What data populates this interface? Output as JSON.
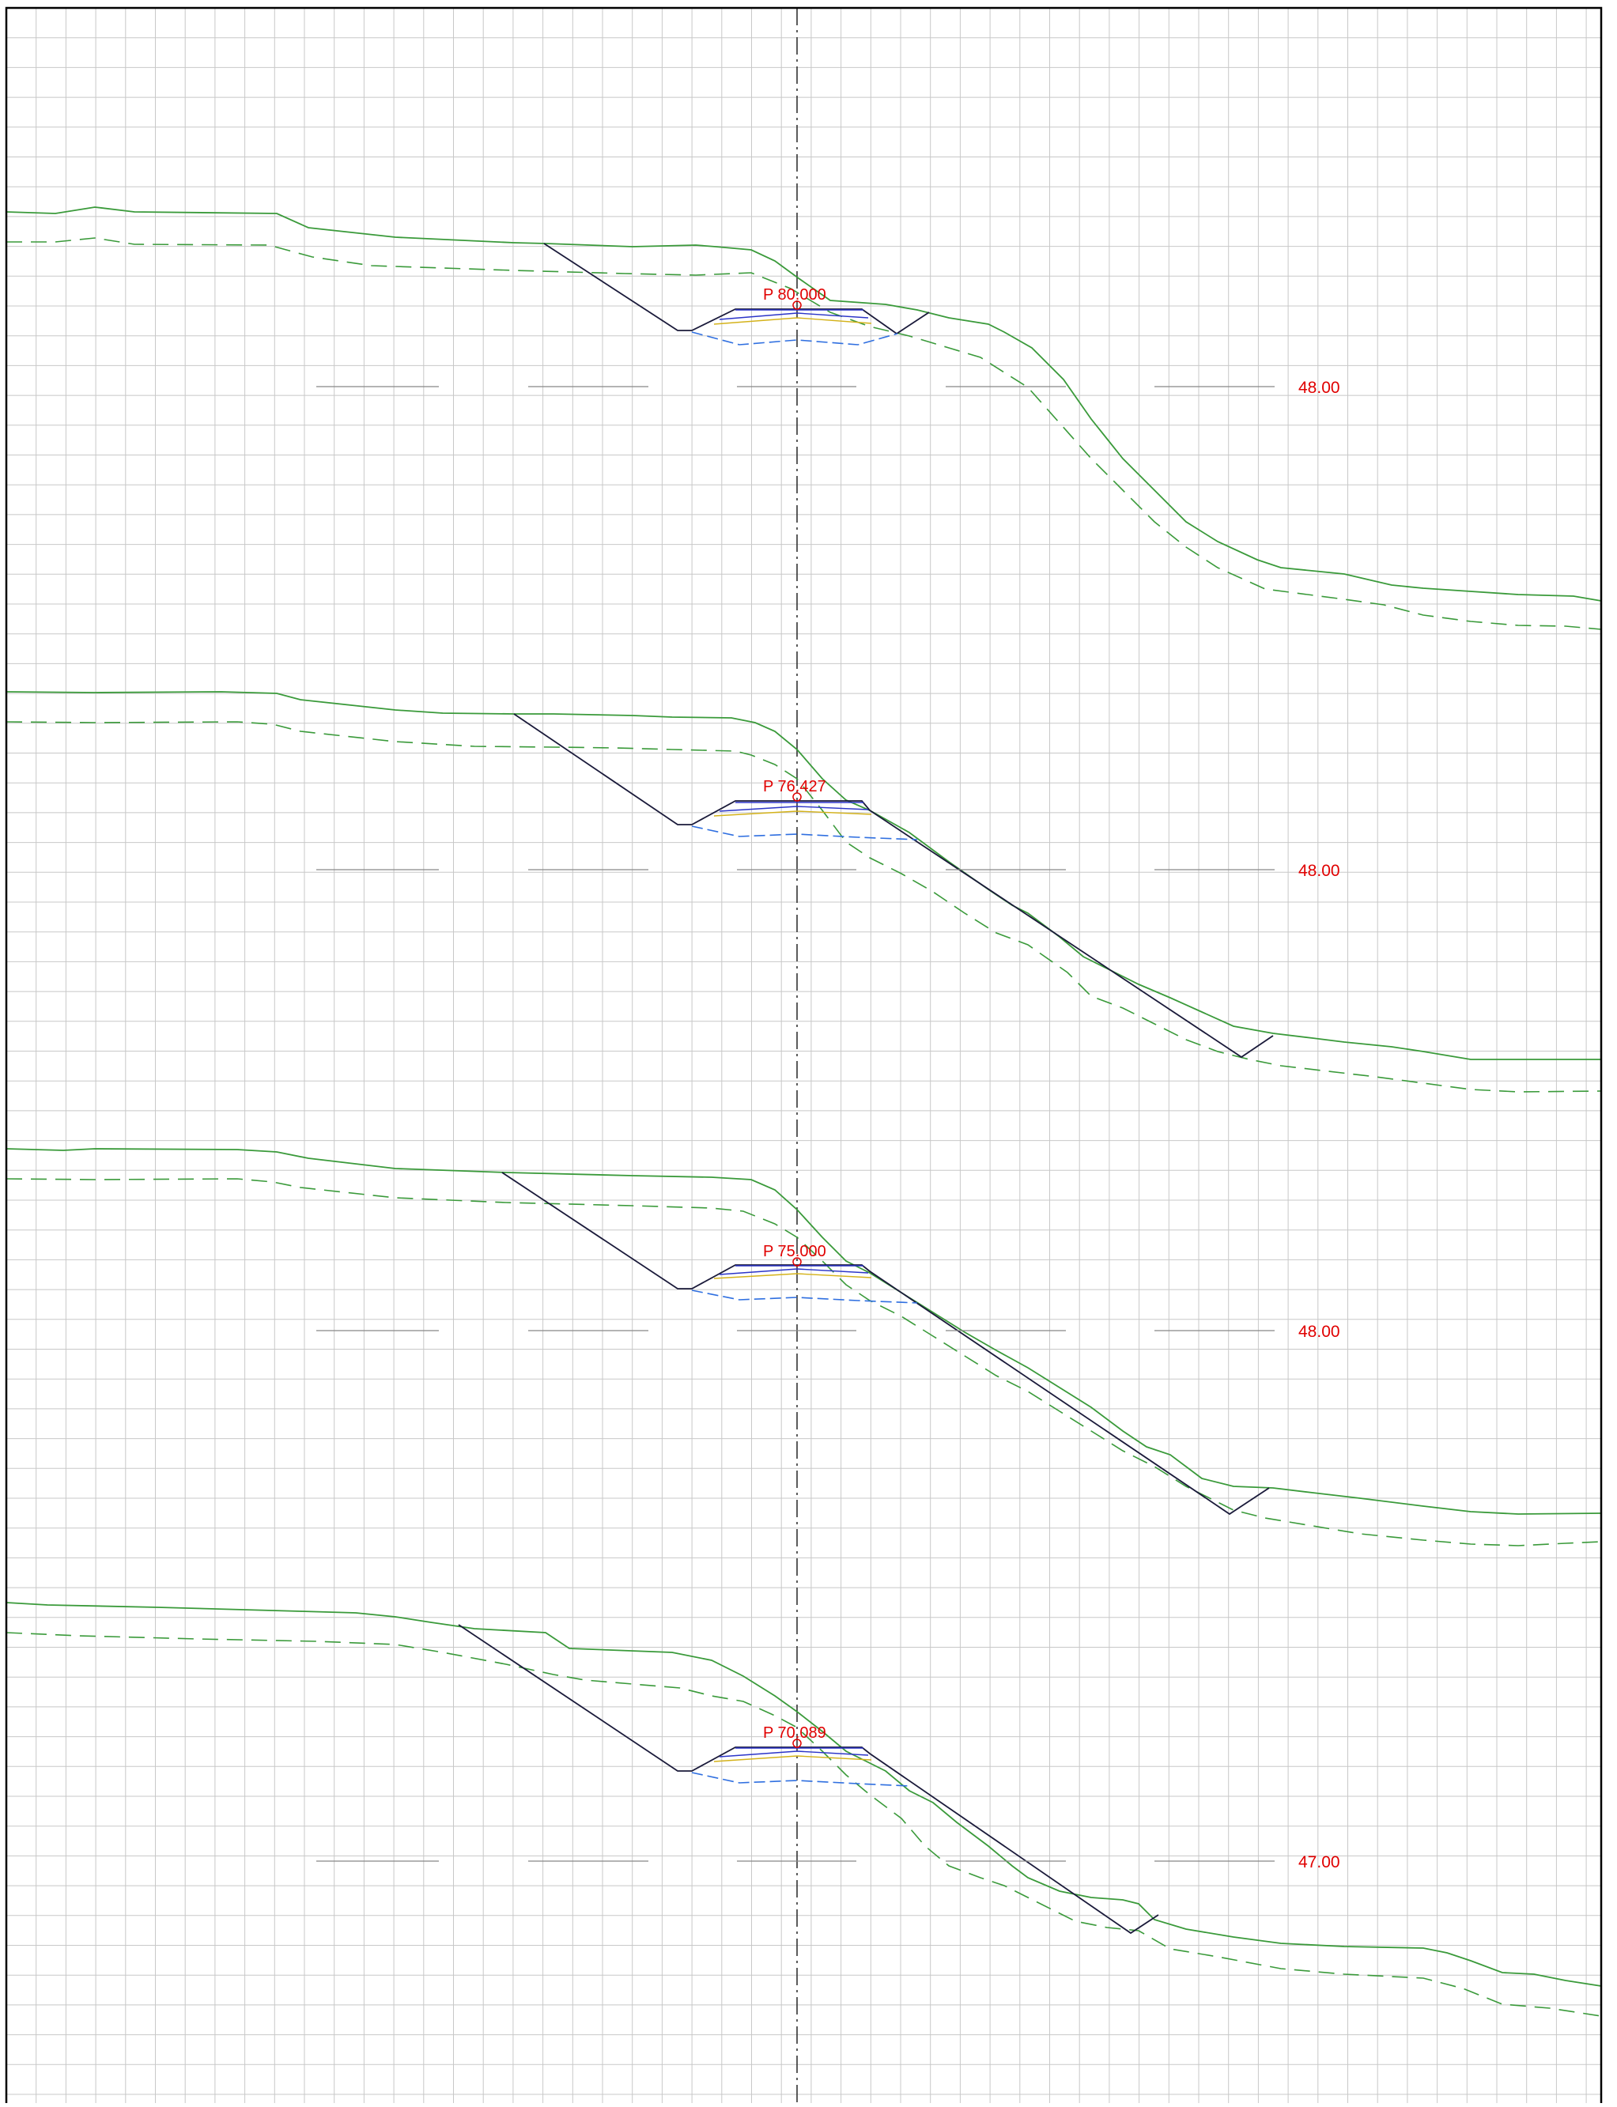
{
  "sections": [
    {
      "station_label": "P 80.000",
      "elevation_label": "48.00"
    },
    {
      "station_label": "P 76.427",
      "elevation_label": "48.00"
    },
    {
      "station_label": "P 75.000",
      "elevation_label": "48.00"
    },
    {
      "station_label": "P 70.089",
      "elevation_label": "47.00"
    }
  ],
  "colors": {
    "background": "#ffffff",
    "grid": "#c8c8c8",
    "frame": "#000000",
    "centerline": "#333333",
    "terrain": "#3a9a3a",
    "design_line": "#1a1a3a",
    "pavement": "#2b34c8",
    "subbase": "#d4b21a",
    "formation": "#2f6fe0",
    "annotation": "#e00000",
    "datum_line": "#888888"
  }
}
